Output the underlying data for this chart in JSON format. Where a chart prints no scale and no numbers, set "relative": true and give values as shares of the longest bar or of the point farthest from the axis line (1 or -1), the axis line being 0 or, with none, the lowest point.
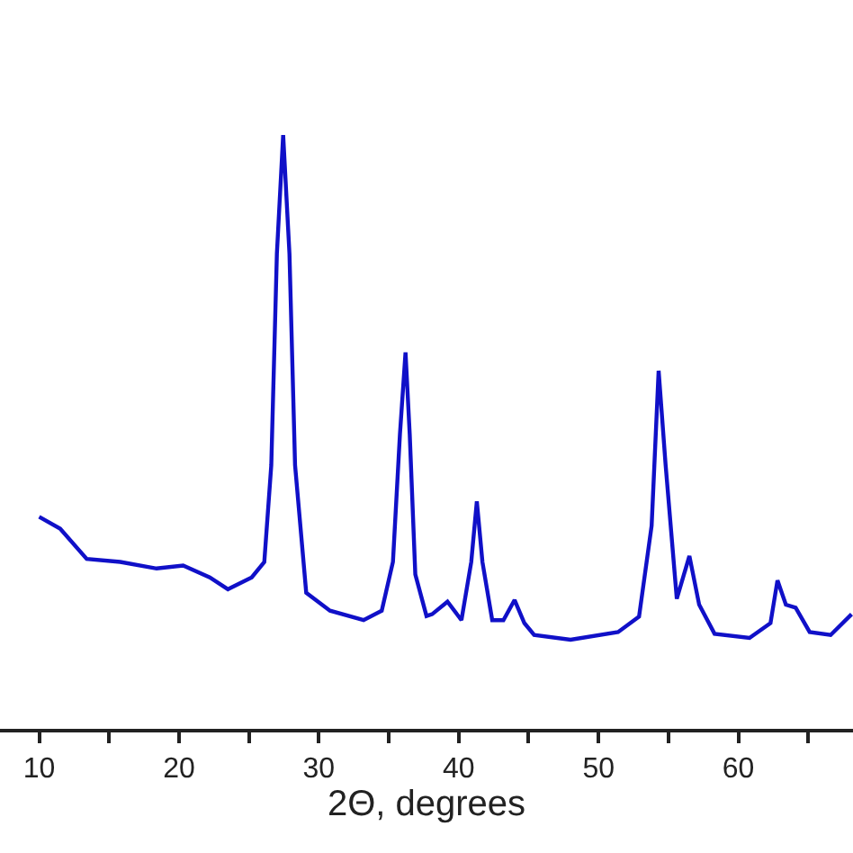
{
  "chart_data": {
    "type": "line",
    "relative": true,
    "xlabel": "2Θ, degrees",
    "xlim": [
      7.2,
      68.2
    ],
    "xticks": [
      10,
      {
        "value": 15,
        "label": null
      },
      20,
      {
        "value": 25,
        "label": null
      },
      30,
      {
        "value": 35,
        "label": null
      },
      40,
      {
        "value": 45,
        "label": null
      },
      50,
      {
        "value": 55,
        "label": null
      },
      60,
      {
        "value": 65,
        "label": null
      }
    ],
    "tick_labels": "x",
    "marker": "none",
    "line_style": "solid",
    "series": [
      {
        "color": "#1010c8",
        "x": [
          10.0,
          11.5,
          13.4,
          15.8,
          18.4,
          20.3,
          22.2,
          23.5,
          25.2,
          26.1,
          26.6,
          27.0,
          27.45,
          27.9,
          28.3,
          29.1,
          30.8,
          33.2,
          34.5,
          35.3,
          35.8,
          36.2,
          36.5,
          36.9,
          37.7,
          38.1,
          39.2,
          40.2,
          40.9,
          41.3,
          41.7,
          42.4,
          43.2,
          44.0,
          44.7,
          45.4,
          48.0,
          51.4,
          52.9,
          53.8,
          54.3,
          54.8,
          55.6,
          56.5,
          57.2,
          58.3,
          60.8,
          62.3,
          62.8,
          63.4,
          64.1,
          65.1,
          66.6,
          68.1
        ],
        "values": [
          0.357,
          0.337,
          0.286,
          0.281,
          0.27,
          0.275,
          0.255,
          0.235,
          0.255,
          0.281,
          0.444,
          0.8,
          1.0,
          0.8,
          0.444,
          0.229,
          0.199,
          0.183,
          0.199,
          0.281,
          0.496,
          0.634,
          0.496,
          0.26,
          0.19,
          0.193,
          0.214,
          0.183,
          0.281,
          0.383,
          0.281,
          0.183,
          0.183,
          0.217,
          0.178,
          0.158,
          0.15,
          0.163,
          0.189,
          0.342,
          0.603,
          0.444,
          0.219,
          0.291,
          0.209,
          0.16,
          0.153,
          0.178,
          0.25,
          0.209,
          0.204,
          0.163,
          0.158,
          0.193
        ]
      }
    ]
  }
}
